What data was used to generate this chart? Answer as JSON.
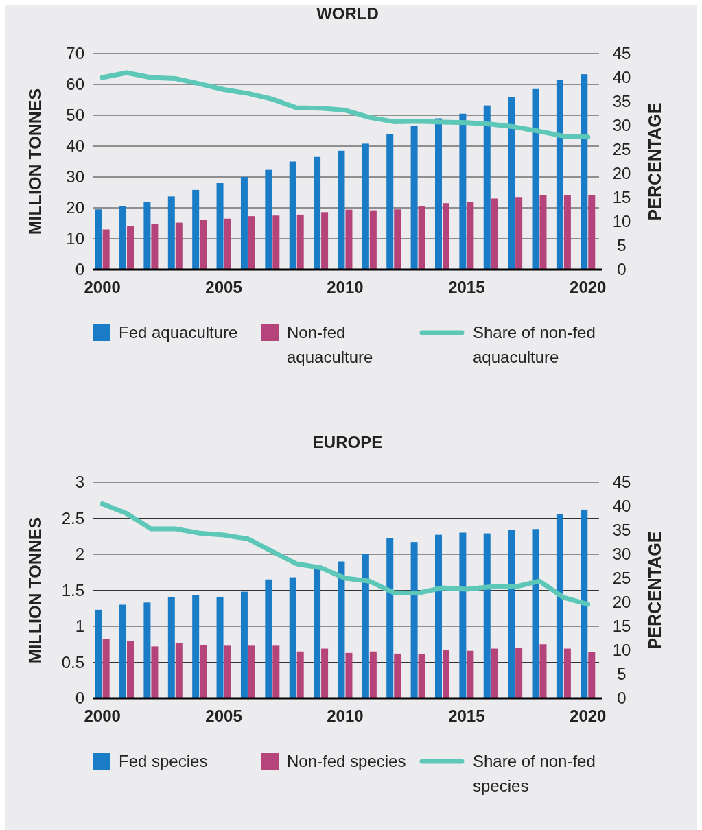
{
  "chart_data": [
    {
      "type": "bar",
      "title": "WORLD",
      "ylabel": "MILLION TONNES",
      "y2label": "PERCENTAGE",
      "x": [
        2000,
        2001,
        2002,
        2003,
        2004,
        2005,
        2006,
        2007,
        2008,
        2009,
        2010,
        2011,
        2012,
        2013,
        2014,
        2015,
        2016,
        2017,
        2018,
        2019,
        2020
      ],
      "xlim": [
        1999.6,
        2020.6
      ],
      "xticks": [
        2000,
        2005,
        2010,
        2015,
        2020
      ],
      "ylim": [
        0,
        70
      ],
      "yticks": [
        0,
        10,
        20,
        30,
        40,
        50,
        60,
        70
      ],
      "y2lim": [
        0,
        45
      ],
      "y2ticks": [
        0,
        5,
        10,
        15,
        20,
        25,
        30,
        35,
        40,
        45
      ],
      "grid": "y",
      "legend": "bottom",
      "series": [
        {
          "name": "Fed aquaculture",
          "color": "#1a7bc6",
          "values": [
            19.5,
            20.5,
            22,
            23.7,
            25.8,
            28,
            30,
            32.3,
            35,
            36.5,
            38.5,
            40.8,
            44,
            46.5,
            49,
            50.5,
            53.2,
            55.8,
            58.5,
            61.5,
            63.3
          ]
        },
        {
          "name": "Non-fed aquaculture",
          "color": "#b5447a",
          "values": [
            13,
            14.2,
            14.7,
            15.2,
            16,
            16.5,
            17.3,
            17.5,
            17.8,
            18.6,
            19.4,
            19.2,
            19.5,
            20.5,
            21.5,
            22,
            23,
            23.5,
            24,
            24,
            24.2
          ]
        },
        {
          "name": "Share of non-fed aquaculture",
          "type": "line",
          "axis": "y2",
          "color": "#5ec8b8",
          "values": [
            40,
            41,
            40,
            39.8,
            38.7,
            37.5,
            36.7,
            35.5,
            33.7,
            33.6,
            33.2,
            31.7,
            30.8,
            30.9,
            30.7,
            30.6,
            30.3,
            29.7,
            28.8,
            27.8,
            27.6
          ]
        }
      ]
    },
    {
      "type": "bar",
      "title": "EUROPE",
      "ylabel": "MILLION TONNES",
      "y2label": "PERCENTAGE",
      "x": [
        2000,
        2001,
        2002,
        2003,
        2004,
        2005,
        2006,
        2007,
        2008,
        2009,
        2010,
        2011,
        2012,
        2013,
        2014,
        2015,
        2016,
        2017,
        2018,
        2019,
        2020
      ],
      "xlim": [
        1999.6,
        2020.6
      ],
      "xticks": [
        2000,
        2005,
        2010,
        2015,
        2020
      ],
      "ylim": [
        0,
        3
      ],
      "yticks": [
        0,
        0.5,
        1,
        1.5,
        2,
        2.5,
        3
      ],
      "y2lim": [
        0,
        45
      ],
      "y2ticks": [
        0,
        5,
        10,
        15,
        20,
        25,
        30,
        35,
        40,
        45
      ],
      "grid": "y",
      "legend": "bottom",
      "series": [
        {
          "name": "Fed species",
          "color": "#1a7bc6",
          "values": [
            1.23,
            1.3,
            1.33,
            1.4,
            1.43,
            1.41,
            1.48,
            1.65,
            1.68,
            1.8,
            1.9,
            2.0,
            2.22,
            2.17,
            2.27,
            2.3,
            2.29,
            2.34,
            2.35,
            2.56,
            2.62
          ]
        },
        {
          "name": "Non-fed species",
          "color": "#b5447a",
          "values": [
            0.82,
            0.8,
            0.72,
            0.77,
            0.74,
            0.73,
            0.73,
            0.73,
            0.65,
            0.69,
            0.63,
            0.65,
            0.62,
            0.61,
            0.67,
            0.66,
            0.69,
            0.7,
            0.75,
            0.69,
            0.64
          ]
        },
        {
          "name": "Share of non-fed species",
          "type": "line",
          "axis": "y2",
          "color": "#5ec8b8",
          "values": [
            40.5,
            38.5,
            35.3,
            35.3,
            34.4,
            34,
            33.2,
            30.6,
            28,
            27.2,
            25,
            24.4,
            22,
            21.9,
            23,
            22.7,
            23.2,
            23.2,
            24.4,
            21,
            19.6
          ]
        }
      ]
    }
  ]
}
